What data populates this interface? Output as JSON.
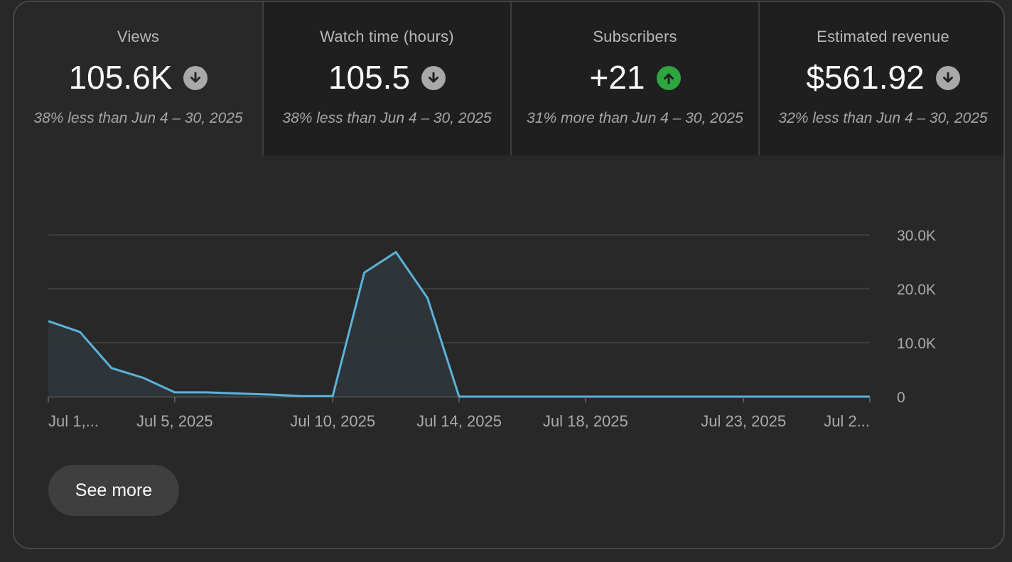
{
  "metrics": [
    {
      "label": "Views",
      "value": "105.6K",
      "trend": "down",
      "comparison": "38% less than Jun 4 – 30, 2025",
      "selected": true
    },
    {
      "label": "Watch time (hours)",
      "value": "105.5",
      "trend": "down",
      "comparison": "38% less than Jun 4 – 30, 2025",
      "selected": false
    },
    {
      "label": "Subscribers",
      "value": "+21",
      "trend": "up",
      "comparison": "31% more than Jun 4 – 30, 2025",
      "selected": false
    },
    {
      "label": "Estimated revenue",
      "value": "$561.92",
      "trend": "down",
      "comparison": "32% less than Jun 4 – 30, 2025",
      "selected": false
    }
  ],
  "icons": {
    "down": "arrow-down-icon",
    "up": "arrow-up-icon"
  },
  "colors": {
    "line": "#5bb3d9",
    "area": "#2f3539",
    "trend_down": "#a9a9a9",
    "trend_up": "#2ba640",
    "grid": "#444444"
  },
  "chart_data": {
    "type": "area",
    "x": [
      1,
      2,
      3,
      4,
      5,
      6,
      7,
      8,
      9,
      10,
      11,
      12,
      13,
      14,
      15,
      16,
      17,
      18,
      19,
      20,
      21,
      22,
      23,
      24,
      25,
      26,
      27
    ],
    "values": [
      14000,
      12000,
      5300,
      3500,
      800,
      800,
      600,
      400,
      100,
      100,
      23000,
      26800,
      18300,
      0,
      0,
      0,
      0,
      0,
      0,
      0,
      0,
      0,
      0,
      0,
      0,
      0,
      0
    ],
    "x_tick_labels": [
      {
        "day": 1,
        "label": "Jul 1,..."
      },
      {
        "day": 5,
        "label": "Jul 5, 2025"
      },
      {
        "day": 10,
        "label": "Jul 10, 2025"
      },
      {
        "day": 14,
        "label": "Jul 14, 2025"
      },
      {
        "day": 18,
        "label": "Jul 18, 2025"
      },
      {
        "day": 23,
        "label": "Jul 23, 2025"
      },
      {
        "day": 27,
        "label": "Jul 2..."
      }
    ],
    "y_ticks": [
      0,
      10000,
      20000,
      30000
    ],
    "y_tick_labels": [
      "0",
      "10.0K",
      "20.0K",
      "30.0K"
    ],
    "ylim": [
      0,
      30000
    ],
    "xlim": [
      1,
      27
    ],
    "grid": true,
    "y_axis_position": "right"
  },
  "see_more_label": "See more"
}
